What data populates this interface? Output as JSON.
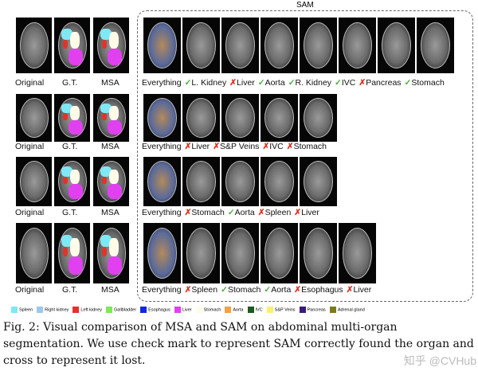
{
  "sam_title": "SAM",
  "left_labels": [
    "Original",
    "G.T.",
    "MSA"
  ],
  "rows": [
    {
      "sam_labels": [
        {
          "text": "Everything",
          "mark": ""
        },
        {
          "text": "L. Kidney",
          "mark": "check"
        },
        {
          "text": "Liver",
          "mark": "cross"
        },
        {
          "text": "Aorta",
          "mark": "check"
        },
        {
          "text": "R. Kidney",
          "mark": "check"
        },
        {
          "text": "IVC",
          "mark": "check"
        },
        {
          "text": "Pancreas",
          "mark": "cross"
        },
        {
          "text": "Stomach",
          "mark": "check"
        }
      ]
    },
    {
      "sam_labels": [
        {
          "text": "Everything",
          "mark": ""
        },
        {
          "text": "Liver",
          "mark": "cross"
        },
        {
          "text": "S&P Veins",
          "mark": "cross"
        },
        {
          "text": "IVC",
          "mark": "cross"
        },
        {
          "text": "Stomach",
          "mark": "cross"
        }
      ]
    },
    {
      "sam_labels": [
        {
          "text": "Everything",
          "mark": ""
        },
        {
          "text": "Stomach",
          "mark": "cross"
        },
        {
          "text": "Aorta",
          "mark": "check"
        },
        {
          "text": "Spleen",
          "mark": "cross"
        },
        {
          "text": "Liver",
          "mark": "cross"
        }
      ]
    },
    {
      "sam_labels": [
        {
          "text": "Everything",
          "mark": ""
        },
        {
          "text": "Spleen",
          "mark": "cross"
        },
        {
          "text": "Stomach",
          "mark": "check"
        },
        {
          "text": "Aorta",
          "mark": "check"
        },
        {
          "text": "Esophagus",
          "mark": "cross"
        },
        {
          "text": "Liver",
          "mark": "cross"
        }
      ]
    }
  ],
  "legend": [
    {
      "label": "Spleen",
      "color": "#7fe8f5"
    },
    {
      "label": "Right kidney",
      "color": "#9cc8ea"
    },
    {
      "label": "Left kidney",
      "color": "#e0342a"
    },
    {
      "label": "Gallbladder",
      "color": "#7ee85a"
    },
    {
      "label": "Esophagus",
      "color": "#1028e0"
    },
    {
      "label": "Liver",
      "color": "#e040f0"
    },
    {
      "label": "Stomach",
      "color": "#fffbe8"
    },
    {
      "label": "Aorta",
      "color": "#f4a040"
    },
    {
      "label": "IVC",
      "color": "#1e5a1e"
    },
    {
      "label": "S&P Veins",
      "color": "#f8f070"
    },
    {
      "label": "Pancreas",
      "color": "#3a1a78"
    },
    {
      "label": "Adrenal gland",
      "color": "#7a7a20"
    }
  ],
  "marks": {
    "check": "✓",
    "cross": "✗"
  },
  "caption": "Fig. 2: Visual comparison of MSA and SAM on abdominal multi-organ segmentation. We use check mark to represent SAM correctly found the organ and cross to represent it lost.",
  "watermark": "知乎 @CVHub"
}
